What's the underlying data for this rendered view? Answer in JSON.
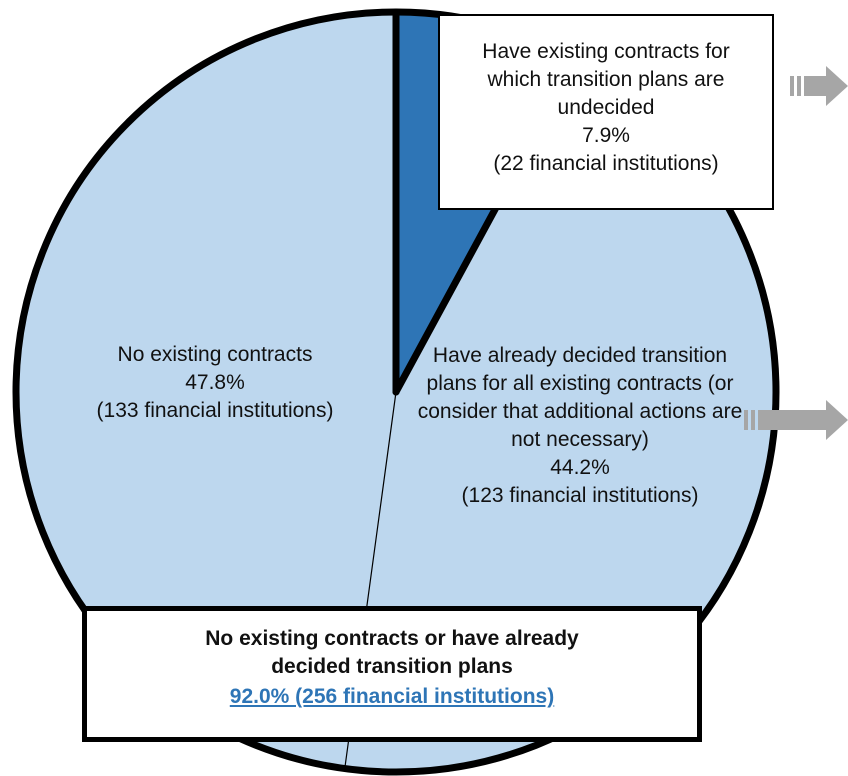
{
  "chart_data": {
    "type": "pie",
    "categories": [
      "Have existing contracts for which transition plans are undecided",
      "Have already decided transition plans for all existing contracts (or consider that additional actions are not necessary)",
      "No existing contracts"
    ],
    "values": [
      7.9,
      44.2,
      47.8
    ],
    "value_labels": [
      "7.9%",
      "44.2%",
      "47.8%"
    ],
    "count_labels": [
      "(22 financial institutions)",
      "(123 financial institutions)",
      "(133 financial institutions)"
    ],
    "colors": [
      "#2e75b6",
      "#bdd7ee",
      "#bdd7ee"
    ],
    "summary": {
      "title": "No existing contracts or have already decided transition plans",
      "value": 92.0,
      "label": "92.0% (256 financial institutions)"
    }
  }
}
